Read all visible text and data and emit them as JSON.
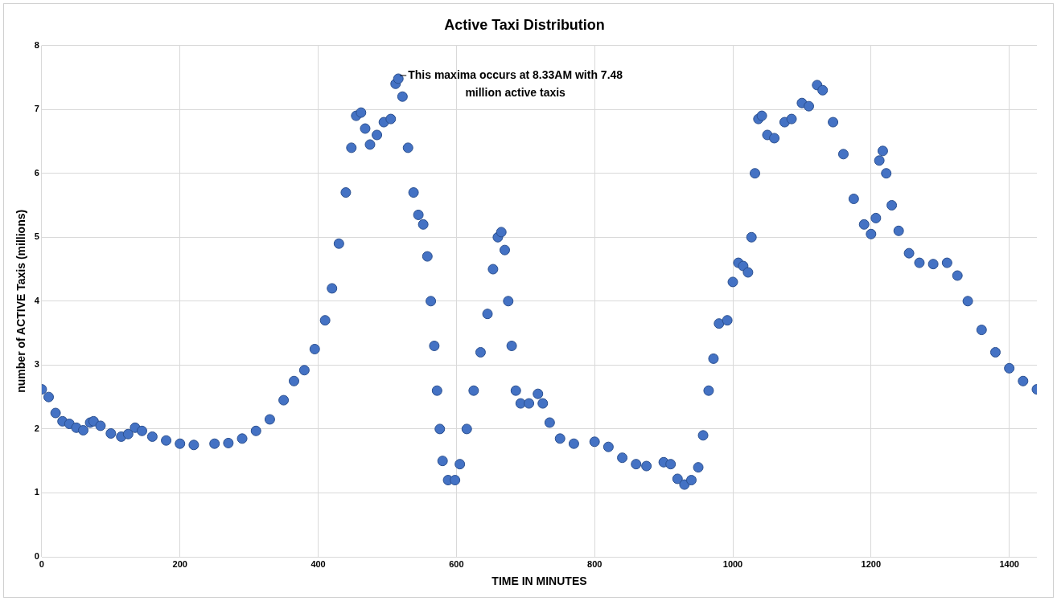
{
  "chart_data": {
    "type": "scatter",
    "title": "Active Taxi Distribution",
    "xlabel": "TIME IN MINUTES",
    "ylabel": "number of ACTIVE Taxis (millions)",
    "x": [
      0,
      10,
      20,
      30,
      40,
      50,
      60,
      70,
      75,
      85,
      100,
      115,
      125,
      135,
      145,
      160,
      180,
      200,
      220,
      250,
      270,
      290,
      310,
      330,
      350,
      365,
      380,
      395,
      410,
      420,
      430,
      440,
      448,
      455,
      462,
      468,
      475,
      485,
      495,
      505,
      512,
      516,
      522,
      530,
      538,
      545,
      552,
      558,
      563,
      568,
      572,
      576,
      580,
      588,
      598,
      605,
      615,
      625,
      635,
      645,
      653,
      660,
      665,
      670,
      675,
      680,
      686,
      693,
      705,
      718,
      725,
      735,
      750,
      770,
      800,
      820,
      840,
      860,
      875,
      900,
      910,
      920,
      930,
      940,
      950,
      957,
      965,
      972,
      980,
      992,
      1000,
      1008,
      1015,
      1022,
      1027,
      1032,
      1037,
      1042,
      1050,
      1060,
      1075,
      1085,
      1100,
      1110,
      1122,
      1130,
      1145,
      1160,
      1175,
      1190,
      1200,
      1207,
      1212,
      1217,
      1222,
      1230,
      1240,
      1255,
      1270,
      1290,
      1310,
      1325,
      1340,
      1360,
      1380,
      1400,
      1420,
      1440
    ],
    "series": [
      {
        "color": "#4472c4",
        "values": [
          2.62,
          2.5,
          2.25,
          2.12,
          2.08,
          2.02,
          1.98,
          2.1,
          2.12,
          2.05,
          1.93,
          1.88,
          1.92,
          2.02,
          1.97,
          1.88,
          1.82,
          1.77,
          1.75,
          1.77,
          1.78,
          1.85,
          1.97,
          2.15,
          2.45,
          2.75,
          2.92,
          3.25,
          3.7,
          4.2,
          4.9,
          5.7,
          6.4,
          6.9,
          6.95,
          6.7,
          6.45,
          6.6,
          6.8,
          6.85,
          7.4,
          7.48,
          7.2,
          6.4,
          5.7,
          5.35,
          5.2,
          4.7,
          4.0,
          3.3,
          2.6,
          2.0,
          1.5,
          1.2,
          1.2,
          1.45,
          2.0,
          2.6,
          3.2,
          3.8,
          4.5,
          5.0,
          5.08,
          4.8,
          4.0,
          3.3,
          2.6,
          2.4,
          2.4,
          2.55,
          2.4,
          2.1,
          1.85,
          1.77,
          1.8,
          1.72,
          1.55,
          1.45,
          1.42,
          1.48,
          1.45,
          1.22,
          1.13,
          1.2,
          1.4,
          1.9,
          2.6,
          3.1,
          3.65,
          3.7,
          4.3,
          4.6,
          4.55,
          4.45,
          5.0,
          6.0,
          6.85,
          6.9,
          6.6,
          6.55,
          6.8,
          6.85,
          7.1,
          7.05,
          7.38,
          7.3,
          6.8,
          6.3,
          5.6,
          5.2,
          5.05,
          5.3,
          6.2,
          6.35,
          6.0,
          5.5,
          5.1,
          4.75,
          4.6,
          4.58,
          4.6,
          4.4,
          4.0,
          3.55,
          3.2,
          2.95,
          2.75,
          2.62
        ]
      }
    ],
    "xlim": [
      0,
      1440
    ],
    "xticks": [
      0,
      200,
      400,
      600,
      800,
      1000,
      1200,
      1400
    ],
    "ylim": [
      0,
      8
    ],
    "yticks": [
      0,
      1,
      2,
      3,
      4,
      5,
      6,
      7,
      8
    ],
    "grid": true,
    "legend": false,
    "marker": "circle",
    "annotations": [
      {
        "text": "This maxima occurs at 8.33AM with 7.48 million active taxis",
        "x": 516,
        "y": 7.48
      }
    ]
  }
}
